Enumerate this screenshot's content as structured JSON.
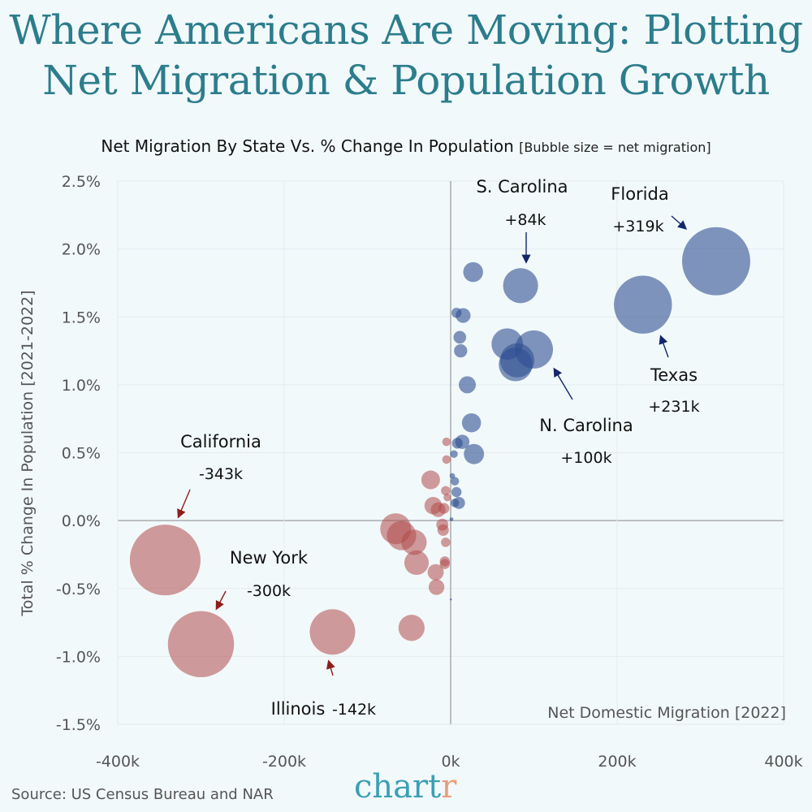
{
  "title_line1": "Where Americans Are Moving: Plotting",
  "title_line2": "Net Migration & Population Growth",
  "subtitle": "Net Migration By State Vs. % Change In Population",
  "subtitle_note": "[Bubble size = net migration]",
  "source": "Source: US Census Bureau and NAR",
  "logo": {
    "main": "chart",
    "accent": "r"
  },
  "colors": {
    "background": "#f2f9fb",
    "positive": "#2e4f91",
    "negative": "#b04a4a",
    "title": "#2c7d8c"
  },
  "chart_data": {
    "type": "scatter",
    "bubble": true,
    "xlabel": "Net Domestic Migration [2022]",
    "ylabel": "Total % Change In Population [2021-2022]",
    "xlim": [
      -400,
      400
    ],
    "ylim": [
      -1.5,
      2.5
    ],
    "x_ticks": [
      "-400k",
      "-200k",
      "0k",
      "200k",
      "400k"
    ],
    "x_tick_values": [
      -400,
      -200,
      0,
      200,
      400
    ],
    "y_ticks": [
      "2.5%",
      "2.0%",
      "1.5%",
      "1.0%",
      "0.5%",
      "0.0%",
      "-0.5%",
      "-1.0%",
      "-1.5%"
    ],
    "y_tick_values": [
      2.5,
      2.0,
      1.5,
      1.0,
      0.5,
      0.0,
      -0.5,
      -1.0,
      -1.5
    ],
    "grid": true,
    "x_unit": "thousands",
    "points": [
      {
        "x": 319,
        "y": 1.91
      },
      {
        "x": 231,
        "y": 1.59
      },
      {
        "x": 84,
        "y": 1.73
      },
      {
        "x": 100,
        "y": 1.26
      },
      {
        "x": 68,
        "y": 1.3
      },
      {
        "x": 80,
        "y": 1.18
      },
      {
        "x": 78,
        "y": 1.15
      },
      {
        "x": 27,
        "y": 1.83
      },
      {
        "x": 7,
        "y": 1.53
      },
      {
        "x": 15,
        "y": 1.51
      },
      {
        "x": 11,
        "y": 1.35
      },
      {
        "x": 12,
        "y": 1.25
      },
      {
        "x": 20,
        "y": 1.0
      },
      {
        "x": 25,
        "y": 0.72
      },
      {
        "x": 14,
        "y": 0.58
      },
      {
        "x": 8,
        "y": 0.57
      },
      {
        "x": 28,
        "y": 0.49
      },
      {
        "x": 4,
        "y": 0.49
      },
      {
        "x": 2,
        "y": 0.33
      },
      {
        "x": 5,
        "y": 0.29
      },
      {
        "x": 7,
        "y": 0.21
      },
      {
        "x": 10,
        "y": 0.13
      },
      {
        "x": 5,
        "y": 0.13
      },
      {
        "x": 1,
        "y": 0.01
      },
      {
        "x": 0.3,
        "y": -0.58
      },
      {
        "x": -343,
        "y": -0.29
      },
      {
        "x": -300,
        "y": -0.91
      },
      {
        "x": -142,
        "y": -0.82
      },
      {
        "x": -5,
        "y": 0.58
      },
      {
        "x": -5,
        "y": 0.45
      },
      {
        "x": -24,
        "y": 0.3
      },
      {
        "x": -6,
        "y": 0.22
      },
      {
        "x": -4,
        "y": 0.17
      },
      {
        "x": -21,
        "y": 0.11
      },
      {
        "x": -15,
        "y": 0.08
      },
      {
        "x": -8,
        "y": 0.09
      },
      {
        "x": -10,
        "y": -0.03
      },
      {
        "x": -9,
        "y": -0.07
      },
      {
        "x": -6,
        "y": -0.16
      },
      {
        "x": -7,
        "y": -0.3
      },
      {
        "x": -7,
        "y": -0.32
      },
      {
        "x": -18,
        "y": -0.38
      },
      {
        "x": -17,
        "y": -0.49
      },
      {
        "x": -47,
        "y": -0.79
      },
      {
        "x": -66,
        "y": -0.06
      },
      {
        "x": -59,
        "y": -0.11
      },
      {
        "x": -44,
        "y": -0.16
      },
      {
        "x": -41,
        "y": -0.31
      }
    ],
    "annotations": [
      {
        "name": "S. Carolina",
        "value": "+84k",
        "sign": "positive"
      },
      {
        "name": "Florida",
        "value": "+319k",
        "sign": "positive"
      },
      {
        "name": "Texas",
        "value": "+231k",
        "sign": "positive"
      },
      {
        "name": "N. Carolina",
        "value": "+100k",
        "sign": "positive"
      },
      {
        "name": "California",
        "value": "-343k",
        "sign": "negative"
      },
      {
        "name": "New York",
        "value": "-300k",
        "sign": "negative"
      },
      {
        "name": "Illinois",
        "value": "-142k",
        "sign": "negative"
      }
    ]
  }
}
